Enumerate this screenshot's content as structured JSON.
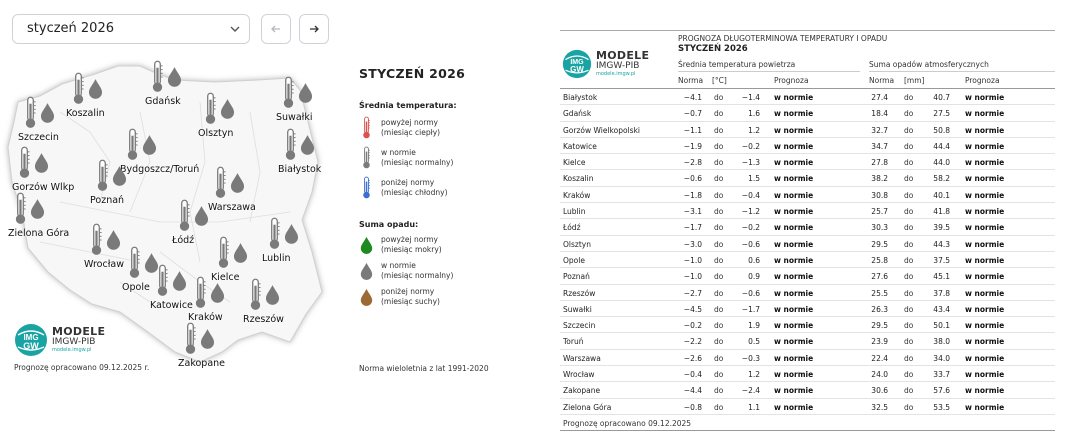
{
  "selector": {
    "month": "styczeń 2026"
  },
  "map": {
    "footer": "Prognozę opracowano 09.12.2025 r.",
    "cities": [
      {
        "name": "Koszalin",
        "lx": 66,
        "ly": 56
      },
      {
        "name": "Gdańsk",
        "lx": 145,
        "ly": 44
      },
      {
        "name": "Suwałki",
        "lx": 276,
        "ly": 60
      },
      {
        "name": "Szczecin",
        "lx": 18,
        "ly": 80
      },
      {
        "name": "Olsztyn",
        "lx": 198,
        "ly": 76
      },
      {
        "name": "Białystok",
        "lx": 278,
        "ly": 112
      },
      {
        "name": "Bydgoszcz/Toruń",
        "lx": 120,
        "ly": 112
      },
      {
        "name": "Gorzów Wlkp",
        "lx": 12,
        "ly": 130
      },
      {
        "name": "Poznań",
        "lx": 90,
        "ly": 143
      },
      {
        "name": "Warszawa",
        "lx": 208,
        "ly": 150
      },
      {
        "name": "Zielona Góra",
        "lx": 8,
        "ly": 176
      },
      {
        "name": "Łódź",
        "lx": 172,
        "ly": 183
      },
      {
        "name": "Lublin",
        "lx": 262,
        "ly": 201
      },
      {
        "name": "Wrocław",
        "lx": 84,
        "ly": 207
      },
      {
        "name": "Opole",
        "lx": 122,
        "ly": 230
      },
      {
        "name": "Kielce",
        "lx": 211,
        "ly": 220
      },
      {
        "name": "Katowice",
        "lx": 150,
        "ly": 248
      },
      {
        "name": "Kraków",
        "lx": 188,
        "ly": 260
      },
      {
        "name": "Rzeszów",
        "lx": 243,
        "ly": 262
      },
      {
        "name": "Zakopane",
        "lx": 178,
        "ly": 306
      }
    ]
  },
  "logo": {
    "line1": "MODELE",
    "line2": "IMGW-PIB",
    "line3": "modele.imgw.pl",
    "badge_top": "IMG",
    "badge_bottom": "GW"
  },
  "legend": {
    "title": "STYCZEŃ 2026",
    "temp_title": "Średnia temperatura:",
    "temp_items": [
      {
        "label1": "powyżej normy",
        "label2": "(miesiąc ciepły)",
        "color": "#d9534f"
      },
      {
        "label1": "w normie",
        "label2": "(miesiąc normalny)",
        "color": "#7a7a7a"
      },
      {
        "label1": "poniżej normy",
        "label2": "(miesiąc chłodny)",
        "color": "#3b6fd1"
      }
    ],
    "prec_title": "Suma opadu:",
    "prec_items": [
      {
        "label1": "powyżej normy",
        "label2": "(miesiąc mokry)",
        "color": "#1f8a1f"
      },
      {
        "label1": "w normie",
        "label2": "(miesiąc normalny)",
        "color": "#7a7a7a"
      },
      {
        "label1": "poniżej normy",
        "label2": "(miesiąc suchy)",
        "color": "#9c6b35"
      }
    ],
    "norm_note": "Norma wieloletnia z lat 1991-2020"
  },
  "table": {
    "title": "PROGNOZA DŁUGOTERMINOWA TEMPERATURY I OPADU",
    "subtitle": "STYCZEŃ 2026",
    "temp_group": "Średnia temperatura powietrza",
    "prec_group": "Suma opadów atmosferycznych",
    "col_norma": "Norma",
    "col_unit_temp": "[°C]",
    "col_prognoza": "Prognoza",
    "col_unit_prec": "[mm]",
    "do_word": "do",
    "footer": "Prognozę opracowano 09.12.2025",
    "rows": [
      {
        "city": "Białystok",
        "t1": "−4.1",
        "t2": "−1.4",
        "tf": "w normie",
        "p1": "27.4",
        "p2": "40.7",
        "pf": "w normie"
      },
      {
        "city": "Gdańsk",
        "t1": "−0.7",
        "t2": "1.6",
        "tf": "w normie",
        "p1": "18.4",
        "p2": "27.5",
        "pf": "w normie"
      },
      {
        "city": "Gorzów Wielkopolski",
        "t1": "−1.1",
        "t2": "1.2",
        "tf": "w normie",
        "p1": "32.7",
        "p2": "50.8",
        "pf": "w normie"
      },
      {
        "city": "Katowice",
        "t1": "−1.9",
        "t2": "−0.2",
        "tf": "w normie",
        "p1": "34.7",
        "p2": "44.4",
        "pf": "w normie"
      },
      {
        "city": "Kielce",
        "t1": "−2.8",
        "t2": "−1.3",
        "tf": "w normie",
        "p1": "27.8",
        "p2": "44.0",
        "pf": "w normie"
      },
      {
        "city": "Koszalin",
        "t1": "−0.6",
        "t2": "1.5",
        "tf": "w normie",
        "p1": "38.2",
        "p2": "58.2",
        "pf": "w normie"
      },
      {
        "city": "Kraków",
        "t1": "−1.8",
        "t2": "−0.4",
        "tf": "w normie",
        "p1": "30.8",
        "p2": "40.1",
        "pf": "w normie"
      },
      {
        "city": "Lublin",
        "t1": "−3.1",
        "t2": "−1.2",
        "tf": "w normie",
        "p1": "25.7",
        "p2": "41.8",
        "pf": "w normie"
      },
      {
        "city": "Łódź",
        "t1": "−1.7",
        "t2": "−0.2",
        "tf": "w normie",
        "p1": "30.3",
        "p2": "39.5",
        "pf": "w normie"
      },
      {
        "city": "Olsztyn",
        "t1": "−3.0",
        "t2": "−0.6",
        "tf": "w normie",
        "p1": "29.5",
        "p2": "44.3",
        "pf": "w normie"
      },
      {
        "city": "Opole",
        "t1": "−1.0",
        "t2": "0.6",
        "tf": "w normie",
        "p1": "25.8",
        "p2": "37.5",
        "pf": "w normie"
      },
      {
        "city": "Poznań",
        "t1": "−1.0",
        "t2": "0.9",
        "tf": "w normie",
        "p1": "27.6",
        "p2": "45.1",
        "pf": "w normie"
      },
      {
        "city": "Rzeszów",
        "t1": "−2.7",
        "t2": "−0.6",
        "tf": "w normie",
        "p1": "25.5",
        "p2": "37.8",
        "pf": "w normie"
      },
      {
        "city": "Suwałki",
        "t1": "−4.5",
        "t2": "−1.7",
        "tf": "w normie",
        "p1": "26.3",
        "p2": "43.4",
        "pf": "w normie"
      },
      {
        "city": "Szczecin",
        "t1": "−0.2",
        "t2": "1.9",
        "tf": "w normie",
        "p1": "29.5",
        "p2": "50.1",
        "pf": "w normie"
      },
      {
        "city": "Toruń",
        "t1": "−2.2",
        "t2": "0.5",
        "tf": "w normie",
        "p1": "23.9",
        "p2": "38.0",
        "pf": "w normie"
      },
      {
        "city": "Warszawa",
        "t1": "−2.6",
        "t2": "−0.3",
        "tf": "w normie",
        "p1": "22.4",
        "p2": "34.0",
        "pf": "w normie"
      },
      {
        "city": "Wrocław",
        "t1": "−0.4",
        "t2": "1.2",
        "tf": "w normie",
        "p1": "24.0",
        "p2": "33.7",
        "pf": "w normie"
      },
      {
        "city": "Zakopane",
        "t1": "−4.4",
        "t2": "−2.4",
        "tf": "w normie",
        "p1": "30.6",
        "p2": "57.6",
        "pf": "w normie"
      },
      {
        "city": "Zielona Góra",
        "t1": "−0.8",
        "t2": "1.1",
        "tf": "w normie",
        "p1": "32.5",
        "p2": "53.5",
        "pf": "w normie"
      }
    ]
  }
}
